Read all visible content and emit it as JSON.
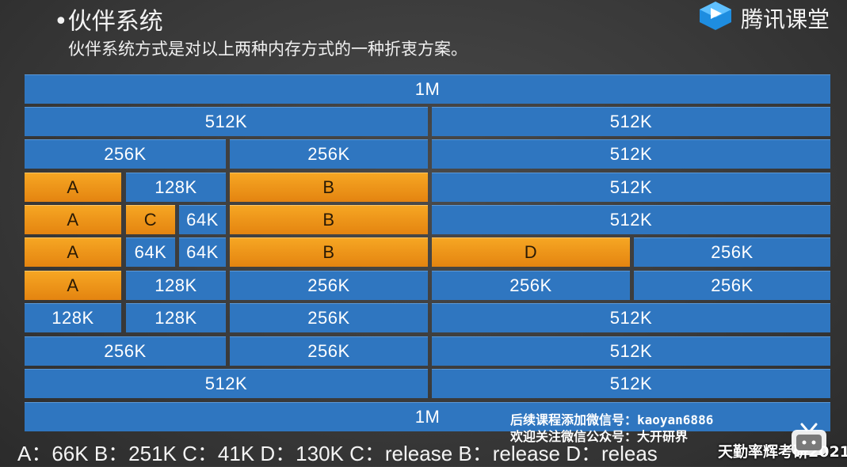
{
  "header": {
    "title": "•伙伴系统",
    "subtitle": "伙伴系统方式是对以上两种内存方式的一种折衷方案。"
  },
  "brand": {
    "name": "腾讯课堂",
    "icon": "play-cube-icon"
  },
  "colors": {
    "free": "#2f76c0",
    "used": "#f39c1e"
  },
  "rows": [
    {
      "blocks": [
        {
          "label": "1M",
          "type": "free"
        }
      ]
    },
    {
      "blocks": [
        {
          "label": "512K",
          "type": "free"
        },
        {
          "label": "512K",
          "type": "free"
        }
      ]
    },
    {
      "blocks": [
        {
          "label": "256K",
          "type": "free"
        },
        {
          "label": "256K",
          "type": "free"
        },
        {
          "label": "512K",
          "type": "free"
        }
      ]
    },
    {
      "blocks": [
        {
          "label": "A",
          "type": "used"
        },
        {
          "label": "128K",
          "type": "free"
        },
        {
          "label": "B",
          "type": "used"
        },
        {
          "label": "512K",
          "type": "free"
        }
      ]
    },
    {
      "blocks": [
        {
          "label": "A",
          "type": "used"
        },
        {
          "label": "C",
          "type": "used"
        },
        {
          "label": "64K",
          "type": "free"
        },
        {
          "label": "B",
          "type": "used"
        },
        {
          "label": "512K",
          "type": "free"
        }
      ]
    },
    {
      "blocks": [
        {
          "label": "A",
          "type": "used"
        },
        {
          "label": "64K",
          "type": "free"
        },
        {
          "label": "64K",
          "type": "free"
        },
        {
          "label": "B",
          "type": "used"
        },
        {
          "label": "D",
          "type": "used"
        },
        {
          "label": "256K",
          "type": "free"
        }
      ]
    },
    {
      "blocks": [
        {
          "label": "A",
          "type": "used"
        },
        {
          "label": "128K",
          "type": "free"
        },
        {
          "label": "256K",
          "type": "free"
        },
        {
          "label": "256K",
          "type": "free"
        },
        {
          "label": "256K",
          "type": "free"
        }
      ]
    },
    {
      "blocks": [
        {
          "label": "128K",
          "type": "free"
        },
        {
          "label": "128K",
          "type": "free"
        },
        {
          "label": "256K",
          "type": "free"
        },
        {
          "label": "512K",
          "type": "free"
        }
      ]
    },
    {
      "blocks": [
        {
          "label": "256K",
          "type": "free"
        },
        {
          "label": "256K",
          "type": "free"
        },
        {
          "label": "512K",
          "type": "free"
        }
      ]
    },
    {
      "blocks": [
        {
          "label": "512K",
          "type": "free"
        },
        {
          "label": "512K",
          "type": "free"
        }
      ]
    },
    {
      "blocks": [
        {
          "label": "1M",
          "type": "free"
        }
      ]
    }
  ],
  "footer": "A：66K  B：251K   C：41K    D：130K  C：release  B：release  D：releas",
  "watermark": {
    "line1": "后续课程添加微信号：kaoyan6886",
    "line2": "欢迎关注微信公众号：大开研界",
    "line3": "天勤率辉考研2021",
    "icon": "bilibili-tv-icon"
  }
}
